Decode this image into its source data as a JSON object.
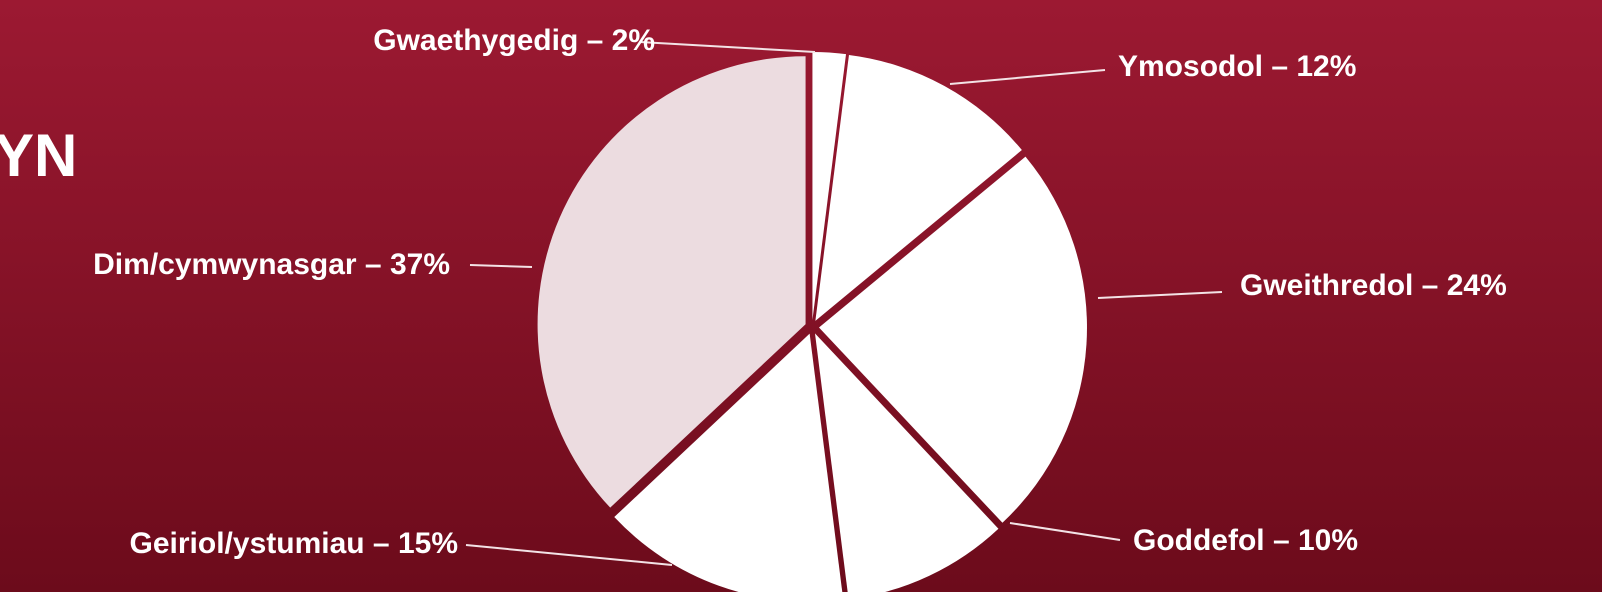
{
  "chart_data": {
    "type": "pie",
    "title": "YN",
    "categories": [
      "Gwaethygedig – 2%",
      "Ymosodol – 12%",
      "Gweithredol – 24%",
      "Goddefol – 10%",
      "Geiriol/ystumiau – 15%",
      "Dim/cymwynasgar – 37%"
    ],
    "values": [
      2,
      12,
      24,
      10,
      15,
      37
    ],
    "colors": [
      "#ffffff",
      "#ffffff",
      "#ffffff",
      "#ffffff",
      "#ffffff",
      "#ecdce0"
    ]
  }
}
